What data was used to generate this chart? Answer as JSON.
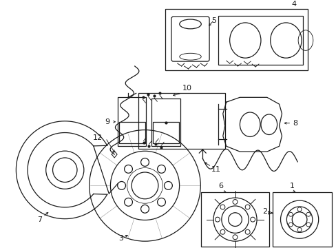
{
  "bg_color": "#ffffff",
  "line_color": "#1a1a1a",
  "fig_width": 4.89,
  "fig_height": 3.6,
  "dpi": 100,
  "lw": 0.9
}
